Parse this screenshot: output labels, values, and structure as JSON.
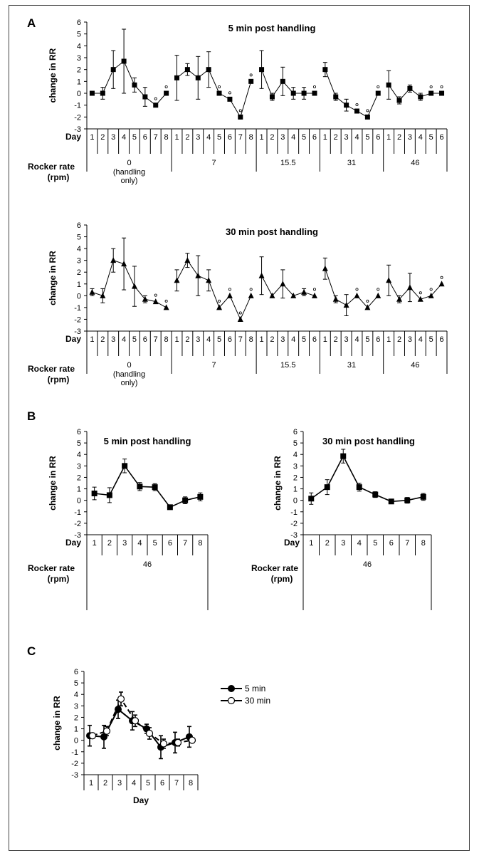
{
  "panels": {
    "A": "A",
    "B": "B",
    "C": "C"
  },
  "common": {
    "ylabel": "change in RR",
    "day_label": "Day",
    "rocker_label_1": "Rocker rate",
    "rocker_label_2": "(rpm)"
  },
  "chart_data": [
    {
      "id": "A-top",
      "type": "line",
      "title": "5 min post handling",
      "ylabel": "change in RR",
      "ylim": [
        -3,
        6
      ],
      "yticks": [
        -3,
        -2,
        -1,
        0,
        1,
        2,
        3,
        4,
        5,
        6
      ],
      "marker": "square",
      "groups": [
        {
          "name": "0",
          "sub": [
            "(handling",
            "only)"
          ],
          "days": [
            1,
            2,
            3,
            4,
            5,
            6,
            7,
            8
          ],
          "values": [
            0,
            0,
            2,
            2.7,
            0.7,
            -0.3,
            -1,
            0
          ],
          "errors": [
            0,
            0.5,
            1.6,
            2.7,
            0.6,
            0.8,
            0,
            0
          ],
          "sig_days": [
            7,
            8
          ]
        },
        {
          "name": "7",
          "days": [
            1,
            2,
            3,
            4,
            5,
            6,
            7,
            8
          ],
          "values": [
            1.3,
            2,
            1.3,
            2,
            0,
            -0.5,
            -2,
            1
          ],
          "errors": [
            1.9,
            0.5,
            1.8,
            1.5,
            0,
            0,
            0,
            0
          ],
          "sig_days": [
            5,
            6,
            7,
            8
          ]
        },
        {
          "name": "15.5",
          "days": [
            1,
            2,
            3,
            4,
            5,
            6
          ],
          "values": [
            2,
            -0.3,
            1,
            0,
            0,
            0
          ],
          "errors": [
            1.6,
            0.3,
            1.2,
            0.5,
            0.5,
            0
          ],
          "sig_days": [
            6
          ]
        },
        {
          "name": "31",
          "days": [
            1,
            2,
            3,
            4,
            5,
            6
          ],
          "values": [
            2,
            -0.3,
            -1,
            -1.5,
            -2,
            0
          ],
          "errors": [
            0.6,
            0.3,
            0.5,
            0,
            0,
            0
          ],
          "sig_days": [
            4,
            5,
            6
          ]
        },
        {
          "name": "46",
          "days": [
            1,
            2,
            3,
            4,
            5,
            6
          ],
          "values": [
            0.7,
            -0.6,
            0.4,
            -0.3,
            0,
            0
          ],
          "errors": [
            1.2,
            0.3,
            0.3,
            0.3,
            0,
            0
          ],
          "sig_days": [
            5,
            6
          ]
        }
      ]
    },
    {
      "id": "A-bottom",
      "type": "line",
      "title": "30 min post handling",
      "ylabel": "change in RR",
      "ylim": [
        -3,
        6
      ],
      "yticks": [
        -3,
        -2,
        -1,
        0,
        1,
        2,
        3,
        4,
        5,
        6
      ],
      "marker": "triangle",
      "groups": [
        {
          "name": "0",
          "sub": [
            "(handling",
            "only)"
          ],
          "days": [
            1,
            2,
            3,
            4,
            5,
            6,
            7,
            8
          ],
          "values": [
            0.3,
            0,
            3,
            2.7,
            0.8,
            -0.3,
            -0.5,
            -1
          ],
          "errors": [
            0.3,
            0.6,
            1,
            2.2,
            1.7,
            0.3,
            0,
            0
          ],
          "sig_days": [
            7,
            8
          ]
        },
        {
          "name": "7",
          "days": [
            1,
            2,
            3,
            4,
            5,
            6,
            7,
            8
          ],
          "values": [
            1.3,
            3,
            1.7,
            1.3,
            -1,
            0,
            -2,
            0
          ],
          "errors": [
            0.9,
            0.6,
            1.7,
            0.9,
            0,
            0,
            0,
            0
          ],
          "sig_days": [
            5,
            6,
            7,
            8
          ]
        },
        {
          "name": "15.5",
          "days": [
            1,
            2,
            3,
            4,
            5,
            6
          ],
          "values": [
            1.7,
            0,
            1,
            0,
            0.3,
            0
          ],
          "errors": [
            1.6,
            0,
            1.2,
            0,
            0.3,
            0
          ],
          "sig_days": [
            6
          ]
        },
        {
          "name": "31",
          "days": [
            1,
            2,
            3,
            4,
            5,
            6
          ],
          "values": [
            2.3,
            -0.3,
            -0.8,
            0,
            -1,
            0
          ],
          "errors": [
            0.9,
            0.3,
            0.9,
            0,
            0,
            0
          ],
          "sig_days": [
            4,
            5,
            6
          ]
        },
        {
          "name": "46",
          "days": [
            1,
            2,
            3,
            4,
            5,
            6
          ],
          "values": [
            1.3,
            -0.3,
            0.7,
            -0.3,
            0,
            1
          ],
          "errors": [
            1.3,
            0.3,
            1.2,
            0,
            0,
            0
          ],
          "sig_days": [
            4,
            5,
            6
          ]
        }
      ]
    },
    {
      "id": "B-left",
      "type": "line",
      "title": "5 min post handling",
      "ylabel": "change in RR",
      "ylim": [
        -3,
        6
      ],
      "yticks": [
        -3,
        -2,
        -1,
        0,
        1,
        2,
        3,
        4,
        5,
        6
      ],
      "marker": "square",
      "groups": [
        {
          "name": "46",
          "days": [
            1,
            2,
            3,
            4,
            5,
            6,
            7,
            8
          ],
          "values": [
            0.6,
            0.45,
            3,
            1.2,
            1.15,
            -0.6,
            0,
            0.3
          ],
          "errors": [
            0.55,
            0.65,
            0.6,
            0.35,
            0.3,
            0.15,
            0.3,
            0.35
          ],
          "sig_days": []
        }
      ]
    },
    {
      "id": "B-right",
      "type": "line",
      "title": "30 min post handling",
      "ylabel": "change in RR",
      "ylim": [
        -3,
        6
      ],
      "yticks": [
        -3,
        -2,
        -1,
        0,
        1,
        2,
        3,
        4,
        5,
        6
      ],
      "marker": "square",
      "groups": [
        {
          "name": "46",
          "days": [
            1,
            2,
            3,
            4,
            5,
            6,
            7,
            8
          ],
          "values": [
            0.15,
            1.15,
            3.85,
            1.15,
            0.5,
            -0.1,
            0,
            0.3
          ],
          "errors": [
            0.5,
            0.65,
            0.6,
            0.35,
            0.25,
            0.15,
            0.25,
            0.3
          ],
          "sig_days": []
        }
      ]
    },
    {
      "id": "C",
      "type": "line",
      "ylabel": "change in RR",
      "xlabel": "Day",
      "ylim": [
        -3,
        6
      ],
      "yticks": [
        -3,
        -2,
        -1,
        0,
        1,
        2,
        3,
        4,
        5,
        6
      ],
      "days": [
        1,
        2,
        3,
        4,
        5,
        6,
        7,
        8
      ],
      "series": [
        {
          "name": "5 min",
          "marker": "filled-circle",
          "line": "solid",
          "values": [
            0.4,
            0.3,
            2.7,
            1.7,
            1,
            -0.6,
            -0.2,
            0.3
          ],
          "errors": [
            0.9,
            1,
            0.8,
            0.8,
            0.4,
            1,
            0.9,
            0.9
          ]
        },
        {
          "name": "30 min",
          "marker": "open-circle",
          "line": "dashed",
          "values": [
            0.4,
            0.8,
            3.6,
            1.7,
            0.6,
            -0.3,
            -0.2,
            0
          ],
          "errors": [
            0.2,
            0.4,
            0.6,
            0.5,
            0.5,
            0.4,
            0.3,
            0.2
          ]
        }
      ]
    }
  ]
}
